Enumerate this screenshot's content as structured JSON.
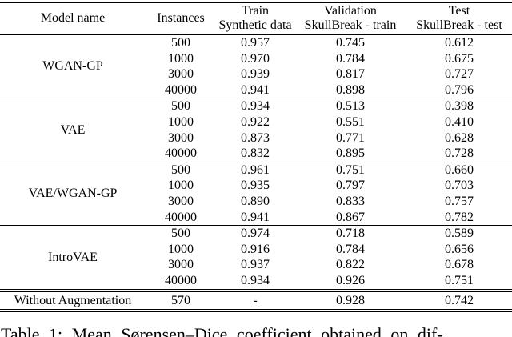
{
  "table": {
    "columns": [
      {
        "title": "Model name",
        "subtitle": ""
      },
      {
        "title": "Instances",
        "subtitle": ""
      },
      {
        "title": "Train",
        "subtitle": "Synthetic data"
      },
      {
        "title": "Validation",
        "subtitle": "SkullBreak - train"
      },
      {
        "title": "Test",
        "subtitle": "SkullBreak - test"
      }
    ],
    "groups": [
      {
        "model": "WGAN-GP",
        "rows": [
          {
            "instances": "500",
            "train": "0.957",
            "validation": "0.745",
            "test": "0.612"
          },
          {
            "instances": "1000",
            "train": "0.970",
            "validation": "0.784",
            "test": "0.675"
          },
          {
            "instances": "3000",
            "train": "0.939",
            "validation": "0.817",
            "test": "0.727"
          },
          {
            "instances": "40000",
            "train": "0.941",
            "validation": "0.898",
            "test": "0.796"
          }
        ]
      },
      {
        "model": "VAE",
        "rows": [
          {
            "instances": "500",
            "train": "0.934",
            "validation": "0.513",
            "test": "0.398"
          },
          {
            "instances": "1000",
            "train": "0.922",
            "validation": "0.551",
            "test": "0.410"
          },
          {
            "instances": "3000",
            "train": "0.873",
            "validation": "0.771",
            "test": "0.628"
          },
          {
            "instances": "40000",
            "train": "0.832",
            "validation": "0.895",
            "test": "0.728"
          }
        ]
      },
      {
        "model": "VAE/WGAN-GP",
        "rows": [
          {
            "instances": "500",
            "train": "0.961",
            "validation": "0.751",
            "test": "0.660"
          },
          {
            "instances": "1000",
            "train": "0.935",
            "validation": "0.797",
            "test": "0.703"
          },
          {
            "instances": "3000",
            "train": "0.890",
            "validation": "0.833",
            "test": "0.757"
          },
          {
            "instances": "40000",
            "train": "0.941",
            "validation": "0.867",
            "test": "0.782"
          }
        ]
      },
      {
        "model": "IntroVAE",
        "rows": [
          {
            "instances": "500",
            "train": "0.974",
            "validation": "0.718",
            "test": "0.589"
          },
          {
            "instances": "1000",
            "train": "0.916",
            "validation": "0.784",
            "test": "0.656"
          },
          {
            "instances": "3000",
            "train": "0.937",
            "validation": "0.822",
            "test": "0.678"
          },
          {
            "instances": "40000",
            "train": "0.934",
            "validation": "0.926",
            "test": "0.751"
          }
        ]
      }
    ],
    "summary_row": {
      "model": "Without Augmentation",
      "instances": "570",
      "train": "-",
      "validation": "0.928",
      "test": "0.742"
    }
  },
  "caption": "Table 1: Mean Sørensen–Dice coefficient obtained on dif-"
}
